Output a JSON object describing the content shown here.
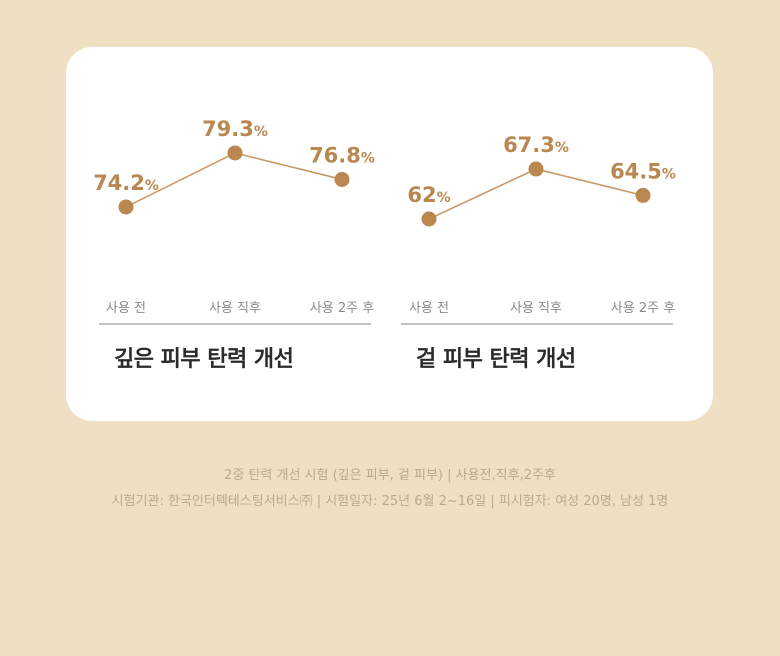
{
  "colors": {
    "accent": "#b9874f",
    "line": "#c99a64",
    "background": "#efe0c4",
    "card": "#ffffff"
  },
  "chart_data": [
    {
      "type": "line",
      "title": "깊은 피부 탄력 개선",
      "categories": [
        "사용 전",
        "사용 직후",
        "사용 2주 후"
      ],
      "values": [
        74.2,
        79.3,
        76.8
      ],
      "value_labels": [
        "74.2",
        "79.3",
        "76.8"
      ],
      "unit": "%",
      "grid": false
    },
    {
      "type": "line",
      "title": "겉 피부 탄력 개선",
      "categories": [
        "사용 전",
        "사용 직후",
        "사용 2주 후"
      ],
      "values": [
        62,
        67.3,
        64.5
      ],
      "value_labels": [
        "62",
        "67.3",
        "64.5"
      ],
      "unit": "%",
      "grid": false
    }
  ],
  "footnote": {
    "line1": "2중 탄력 개선 시험 (깊은 피부, 겉 피부) | 사용전,직후,2주후",
    "line2": "시험기관: 한국인터텍테스팅서비스㈜ | 시험일자: 25년 6월 2~16일 | 피시험자: 여성 20명, 남성 1명"
  }
}
